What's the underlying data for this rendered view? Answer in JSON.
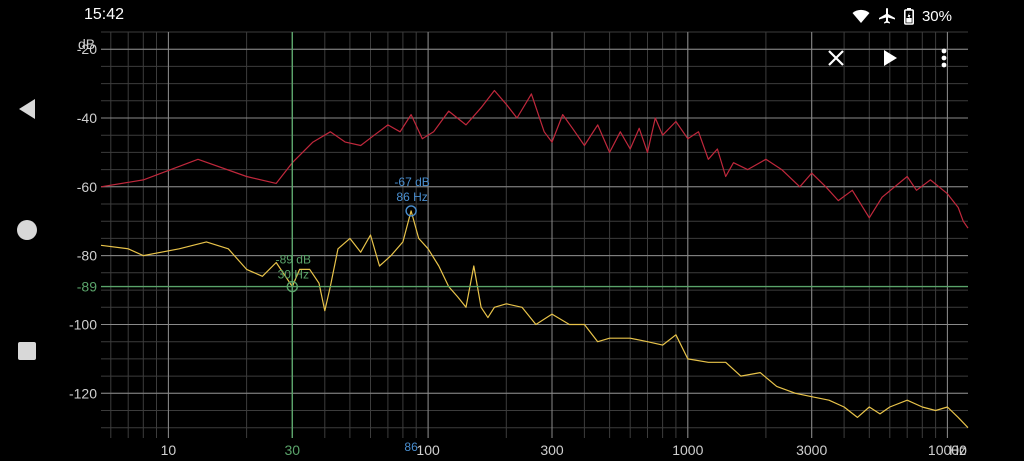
{
  "status": {
    "time": "15:42",
    "battery": "30%"
  },
  "chart_data": {
    "type": "line",
    "xscale": "log",
    "yunit": "dB",
    "xunit": "Hz",
    "xlim": [
      5.5,
      12000
    ],
    "ylim": [
      -133,
      -15
    ],
    "x_major_ticks": [
      {
        "v": 10,
        "t": "10"
      },
      {
        "v": 30,
        "t": "30"
      },
      {
        "v": 100,
        "t": "100"
      },
      {
        "v": 300,
        "t": "300"
      },
      {
        "v": 1000,
        "t": "1000"
      },
      {
        "v": 3000,
        "t": "3000"
      },
      {
        "v": 10000,
        "t": "10000"
      }
    ],
    "y_ticks": [
      {
        "v": -20,
        "t": "-20"
      },
      {
        "v": -40,
        "t": "-40"
      },
      {
        "v": -60,
        "t": "-60"
      },
      {
        "v": -80,
        "t": "-80"
      },
      {
        "v": -100,
        "t": "-100"
      },
      {
        "v": -120,
        "t": "-120"
      }
    ],
    "cursor": {
      "freq": 30,
      "level": -89,
      "freq_label": "30",
      "level_label": "-89",
      "db_text": "-89 dB",
      "hz_text": "30 Hz"
    },
    "peak": {
      "freq": 86,
      "level": -67,
      "freq_label": "86",
      "db_text": "-67 dB",
      "hz_text": "86 Hz"
    },
    "colors": {
      "upper": "#c0283c",
      "lower": "#e8c34a",
      "cursor": "#5aa36a",
      "peak": "#4a8fd0",
      "grid": "#3c3c3c",
      "major": "#8a8a8a"
    },
    "series": [
      {
        "key": "upper",
        "points": [
          [
            5.5,
            -60
          ],
          [
            8,
            -58
          ],
          [
            13,
            -52
          ],
          [
            20,
            -57
          ],
          [
            26,
            -59
          ],
          [
            30,
            -53
          ],
          [
            36,
            -47
          ],
          [
            42,
            -44
          ],
          [
            48,
            -47
          ],
          [
            55,
            -48
          ],
          [
            62,
            -45
          ],
          [
            70,
            -42
          ],
          [
            78,
            -44
          ],
          [
            86,
            -39
          ],
          [
            95,
            -46
          ],
          [
            105,
            -44
          ],
          [
            120,
            -38
          ],
          [
            140,
            -42
          ],
          [
            160,
            -37
          ],
          [
            180,
            -32
          ],
          [
            200,
            -36
          ],
          [
            220,
            -40
          ],
          [
            250,
            -33
          ],
          [
            280,
            -44
          ],
          [
            300,
            -47
          ],
          [
            330,
            -39
          ],
          [
            360,
            -43
          ],
          [
            400,
            -48
          ],
          [
            450,
            -42
          ],
          [
            500,
            -50
          ],
          [
            550,
            -44
          ],
          [
            600,
            -49
          ],
          [
            650,
            -43
          ],
          [
            700,
            -50
          ],
          [
            750,
            -40
          ],
          [
            800,
            -45
          ],
          [
            900,
            -41
          ],
          [
            1000,
            -46
          ],
          [
            1100,
            -44
          ],
          [
            1200,
            -52
          ],
          [
            1300,
            -49
          ],
          [
            1400,
            -57
          ],
          [
            1500,
            -53
          ],
          [
            1700,
            -55
          ],
          [
            2000,
            -52
          ],
          [
            2300,
            -55
          ],
          [
            2700,
            -60
          ],
          [
            3000,
            -56
          ],
          [
            3400,
            -60
          ],
          [
            3800,
            -64
          ],
          [
            4300,
            -61
          ],
          [
            5000,
            -69
          ],
          [
            5600,
            -63
          ],
          [
            7000,
            -57
          ],
          [
            7600,
            -61
          ],
          [
            8600,
            -58
          ],
          [
            10000,
            -62
          ],
          [
            11000,
            -66
          ],
          [
            11500,
            -70
          ],
          [
            12000,
            -72
          ]
        ]
      },
      {
        "key": "lower",
        "points": [
          [
            5.5,
            -77
          ],
          [
            7,
            -78
          ],
          [
            8,
            -80
          ],
          [
            11,
            -78
          ],
          [
            14,
            -76
          ],
          [
            17,
            -78
          ],
          [
            20,
            -84
          ],
          [
            23,
            -86
          ],
          [
            26,
            -82
          ],
          [
            30,
            -89
          ],
          [
            32,
            -84
          ],
          [
            35,
            -84
          ],
          [
            38,
            -88
          ],
          [
            40,
            -96
          ],
          [
            42,
            -89
          ],
          [
            45,
            -78
          ],
          [
            50,
            -75
          ],
          [
            55,
            -79
          ],
          [
            60,
            -74
          ],
          [
            65,
            -83
          ],
          [
            72,
            -80
          ],
          [
            80,
            -76
          ],
          [
            86,
            -67
          ],
          [
            92,
            -75
          ],
          [
            100,
            -78
          ],
          [
            110,
            -83
          ],
          [
            120,
            -89
          ],
          [
            130,
            -92
          ],
          [
            140,
            -95
          ],
          [
            150,
            -83
          ],
          [
            160,
            -95
          ],
          [
            170,
            -98
          ],
          [
            180,
            -95
          ],
          [
            200,
            -94
          ],
          [
            230,
            -95
          ],
          [
            260,
            -100
          ],
          [
            300,
            -97
          ],
          [
            350,
            -100
          ],
          [
            400,
            -100
          ],
          [
            450,
            -105
          ],
          [
            500,
            -104
          ],
          [
            600,
            -104
          ],
          [
            700,
            -105
          ],
          [
            800,
            -106
          ],
          [
            900,
            -103
          ],
          [
            1000,
            -110
          ],
          [
            1200,
            -111
          ],
          [
            1400,
            -111
          ],
          [
            1600,
            -115
          ],
          [
            1900,
            -114
          ],
          [
            2200,
            -118
          ],
          [
            2600,
            -120
          ],
          [
            3000,
            -121
          ],
          [
            3500,
            -122
          ],
          [
            4000,
            -124
          ],
          [
            4500,
            -127
          ],
          [
            5000,
            -124
          ],
          [
            5500,
            -126
          ],
          [
            6000,
            -124
          ],
          [
            7000,
            -122
          ],
          [
            8000,
            -124
          ],
          [
            9000,
            -125
          ],
          [
            10000,
            -124
          ],
          [
            11000,
            -127
          ],
          [
            12000,
            -130
          ]
        ]
      }
    ]
  }
}
